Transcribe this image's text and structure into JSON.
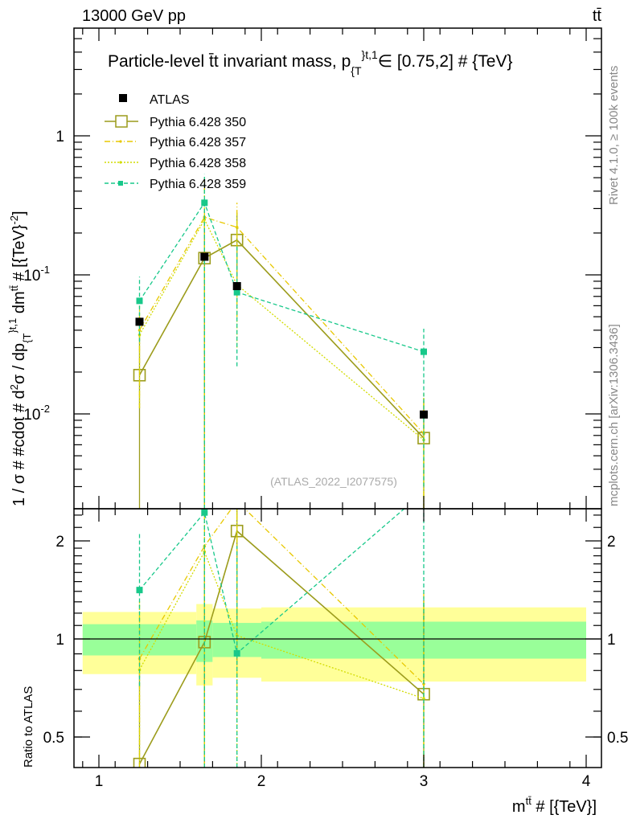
{
  "header": {
    "energy": "13000 GeV pp",
    "process": "tt̄"
  },
  "side": {
    "rivet": "Rivet 4.1.0, ≥ 100k events",
    "mcplots": "mcplots.cern.ch [arXiv:1306.3436]"
  },
  "watermark": "(ATLAS_2022_I2077575)",
  "chart_data": {
    "type": "line",
    "title": "Particle-level t̄t invariant mass, p{T}t,1∈[0.75,2] # {TeV}",
    "title_parts": {
      "main": "Particle-level t̄t invariant mass, p",
      "sub": "{T",
      "sup": "}t,1",
      "rest": "∈ [0.75,2] # {TeV}"
    },
    "ylabel_parts": {
      "a": "1 / σ # #cdot # d",
      "b": "2",
      "c": "σ / dp",
      "d": "{T",
      "e": "}t,1",
      "f": " dm",
      "g": "tt̄",
      "h": " # [{TeV}",
      "i": "-2",
      "j": "]"
    },
    "xlabel_parts": {
      "a": "m",
      "b": "tt̄",
      "c": " # [{TeV}]"
    },
    "ratio_ylabel": "Ratio to ATLAS",
    "xlim": [
      0.847,
      4.094
    ],
    "ylim": [
      0.0021,
      5.95
    ],
    "ratio_ylim": [
      0.403,
      2.51
    ],
    "yscale": "log",
    "x_ticks": [
      "1",
      "2",
      "3",
      "4"
    ],
    "y_ticks": [
      {
        "base": "10",
        "exp": "-2"
      },
      {
        "base": "10",
        "exp": "-1"
      },
      {
        "base": "1",
        "exp": ""
      }
    ],
    "ratio_ticks": [
      "0.5",
      "1",
      "2"
    ],
    "bins": [
      [
        0.9,
        1.6
      ],
      [
        1.6,
        1.7
      ],
      [
        1.7,
        2.0
      ],
      [
        2.0,
        4.0
      ]
    ],
    "x": [
      1.25,
      1.65,
      1.85,
      3.0
    ],
    "data": {
      "name": "ATLAS",
      "values": [
        0.046,
        0.135,
        0.083,
        0.0099
      ],
      "band_inner": [
        [
          0.89,
          1.11
        ],
        [
          0.85,
          1.14
        ],
        [
          0.88,
          1.12
        ],
        [
          0.87,
          1.13
        ]
      ],
      "band_outer": [
        [
          0.78,
          1.21
        ],
        [
          0.72,
          1.28
        ],
        [
          0.76,
          1.24
        ],
        [
          0.74,
          1.25
        ]
      ]
    },
    "series": [
      {
        "name": "Pythia 6.428 350",
        "color": "#9c9c1c",
        "values": [
          0.019,
          0.132,
          0.178,
          0.0067
        ],
        "err_lo": [
          0.0001,
          0.0001,
          0.07,
          0.0001
        ],
        "err_hi": [
          0.036,
          0.26,
          0.28,
          0.013
        ]
      },
      {
        "name": "Pythia 6.428 357",
        "color": "#e8c800",
        "values": [
          0.04,
          0.26,
          0.22,
          0.0072
        ],
        "err_lo": [
          0.011,
          0.0001,
          0.05,
          0.0001
        ],
        "err_hi": [
          0.06,
          0.5,
          0.33,
          0.014
        ]
      },
      {
        "name": "Pythia 6.428 358",
        "color": "#d2dc00",
        "values": [
          0.037,
          0.25,
          0.085,
          0.0065
        ],
        "err_lo": [
          0.011,
          0.0001,
          0.03,
          0.0001
        ],
        "err_hi": [
          0.06,
          0.45,
          0.28,
          0.013
        ]
      },
      {
        "name": "Pythia 6.428 359",
        "color": "#18c88a",
        "values": [
          0.065,
          0.33,
          0.075,
          0.028
        ],
        "err_lo": [
          0.033,
          0.0001,
          0.022,
          0.003
        ],
        "err_hi": [
          0.097,
          0.53,
          0.16,
          0.041
        ]
      }
    ],
    "legend_position": "top-left"
  }
}
